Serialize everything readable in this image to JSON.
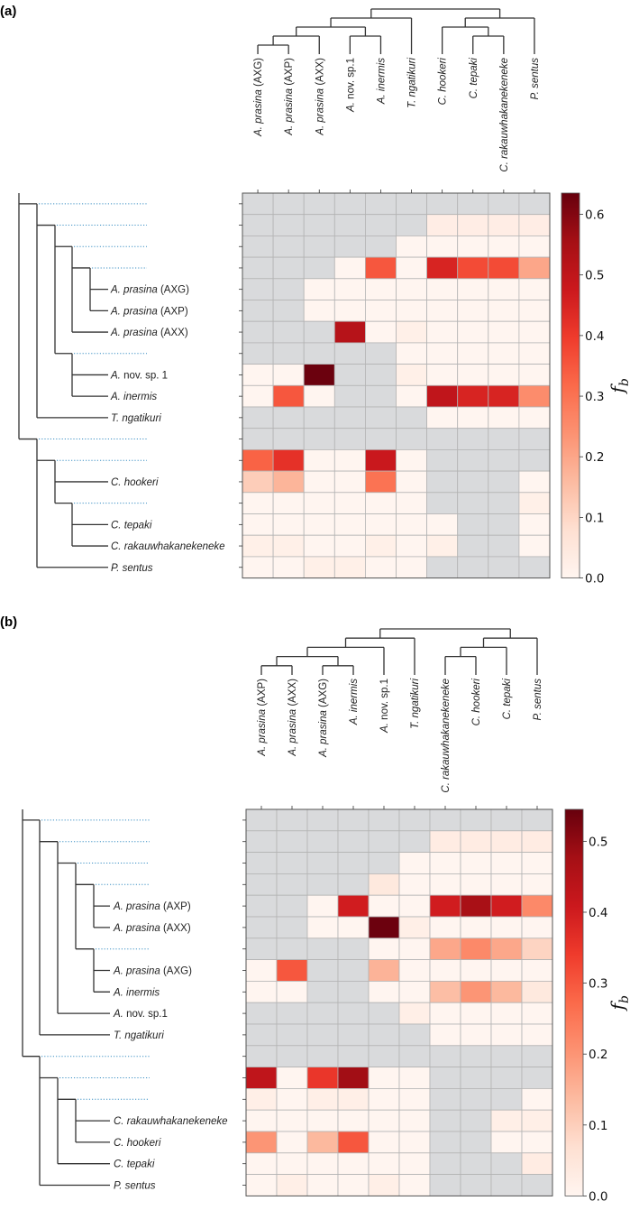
{
  "chart_data": [
    {
      "type": "heatmap",
      "title": "(a)",
      "colormap": "Reds",
      "missing_color": "#d9dadc",
      "x_categories": [
        "A. prasina (AXG)",
        "A. prasina (AXP)",
        "A. prasina (AXX)",
        "A. nov. sp.1",
        "A. inermis",
        "T. ngatikuri",
        "C. hookeri",
        "C. tepaki",
        "C. rakauwhakanekeneke",
        "P. sentus"
      ],
      "y_categories": [
        "",
        "",
        "",
        "",
        "A. prasina (AXG)",
        "A. prasina (AXP)",
        "A. prasina (AXX)",
        "",
        "A. nov. sp. 1",
        "A. inermis",
        "T. ngatikuri",
        "",
        "",
        "C. hookeri",
        "",
        "C. tepaki",
        "C. rakauwhakanekeneke",
        "P. sentus"
      ],
      "values": [
        [
          null,
          null,
          null,
          null,
          null,
          null,
          null,
          null,
          null,
          null
        ],
        [
          null,
          null,
          null,
          null,
          null,
          null,
          0.03,
          0.03,
          0.03,
          0.03
        ],
        [
          null,
          null,
          null,
          null,
          null,
          0,
          0,
          0,
          0,
          0
        ],
        [
          null,
          null,
          null,
          0,
          0.35,
          0,
          0.45,
          0.37,
          0.37,
          0.2
        ],
        [
          null,
          null,
          0,
          0,
          0,
          0,
          0,
          0,
          0,
          0
        ],
        [
          null,
          null,
          0,
          0,
          0,
          0,
          0,
          0,
          0,
          0
        ],
        [
          null,
          null,
          null,
          0.52,
          0,
          0.02,
          0,
          0,
          0,
          0
        ],
        [
          null,
          null,
          null,
          null,
          null,
          0,
          0,
          0,
          0,
          0
        ],
        [
          0,
          0,
          0.63,
          null,
          null,
          0.02,
          0,
          0,
          0,
          0
        ],
        [
          0,
          0.35,
          0,
          null,
          null,
          0,
          0.5,
          0.45,
          0.45,
          0.25
        ],
        [
          null,
          null,
          null,
          null,
          null,
          null,
          0,
          0,
          0,
          0
        ],
        [
          null,
          null,
          null,
          null,
          null,
          null,
          null,
          null,
          null,
          null
        ],
        [
          0.33,
          0.42,
          0,
          0,
          0.48,
          0,
          null,
          null,
          null,
          null
        ],
        [
          0.12,
          0.17,
          0,
          0,
          0.3,
          0,
          null,
          null,
          null,
          0
        ],
        [
          0,
          0,
          0,
          0,
          0,
          0,
          null,
          null,
          null,
          0.02
        ],
        [
          0,
          0,
          0,
          0,
          0,
          0,
          0,
          null,
          null,
          0
        ],
        [
          0.02,
          0.02,
          0,
          0,
          0.02,
          0,
          0.02,
          null,
          null,
          0
        ],
        [
          0,
          0,
          0.02,
          0.02,
          0,
          0,
          null,
          null,
          null,
          null
        ]
      ],
      "zlim": [
        0,
        0.635
      ],
      "colorbar_label": "f_b",
      "colorbar_ticks": [
        "0.0",
        "0.1",
        "0.2",
        "0.3",
        "0.4",
        "0.5",
        "0.6"
      ]
    },
    {
      "type": "heatmap",
      "title": "(b)",
      "colormap": "Reds",
      "missing_color": "#d9dadc",
      "x_categories": [
        "A. prasina (AXP)",
        "A. prasina (AXX)",
        "A. prasina (AXG)",
        "A. inermis",
        "A. nov. sp.1",
        "T. ngatikuri",
        "C. rakauwhakanekeneke",
        "C. hookeri",
        "C. tepaki",
        "P. sentus"
      ],
      "y_categories": [
        "",
        "",
        "",
        "",
        "A. prasina (AXP)",
        "A. prasina (AXX)",
        "",
        "A. prasina (AXG)",
        "A. inermis",
        "A. nov. sp.1",
        "T. ngatikuri",
        "",
        "",
        "",
        "C. rakauwhakanekeneke",
        "C. hookeri",
        "C. tepaki",
        "P. sentus"
      ],
      "values": [
        [
          null,
          null,
          null,
          null,
          null,
          null,
          null,
          null,
          null,
          null
        ],
        [
          null,
          null,
          null,
          null,
          null,
          null,
          0.03,
          0.03,
          0.03,
          0.03
        ],
        [
          null,
          null,
          null,
          null,
          null,
          0,
          0,
          0,
          0,
          0
        ],
        [
          null,
          null,
          null,
          null,
          0.04,
          0,
          0,
          0,
          0,
          0
        ],
        [
          null,
          null,
          0,
          0.4,
          0,
          0,
          0.4,
          0.47,
          0.4,
          0.22
        ],
        [
          null,
          null,
          0,
          0,
          0.54,
          0.02,
          0,
          0,
          0,
          0
        ],
        [
          null,
          null,
          null,
          null,
          0,
          0,
          0.17,
          0.22,
          0.17,
          0.09
        ],
        [
          0,
          0.3,
          null,
          null,
          0.15,
          0,
          0,
          0,
          0,
          0
        ],
        [
          0,
          0,
          null,
          null,
          0,
          0,
          0.13,
          0.2,
          0.14,
          0.04
        ],
        [
          null,
          null,
          null,
          null,
          null,
          0.02,
          0,
          0,
          0,
          0
        ],
        [
          null,
          null,
          null,
          null,
          null,
          null,
          0,
          0,
          0,
          0
        ],
        [
          null,
          null,
          null,
          null,
          null,
          null,
          null,
          null,
          null,
          null
        ],
        [
          0.43,
          0,
          0.35,
          0.48,
          0,
          0,
          null,
          null,
          null,
          null
        ],
        [
          0.02,
          0,
          0.02,
          0.02,
          0,
          0,
          null,
          null,
          null,
          0
        ],
        [
          0,
          0,
          0,
          0,
          0,
          0,
          null,
          null,
          0.02,
          0.02
        ],
        [
          0.2,
          0,
          0.14,
          0.3,
          0,
          0,
          null,
          null,
          0,
          0
        ],
        [
          0,
          0,
          0,
          0,
          0,
          0,
          null,
          null,
          null,
          0.03
        ],
        [
          0,
          0.02,
          0,
          0,
          0.02,
          0,
          null,
          null,
          null,
          null
        ]
      ],
      "zlim": [
        0,
        0.545
      ],
      "colorbar_label": "f_b",
      "colorbar_ticks": [
        "0.0",
        "0.1",
        "0.2",
        "0.3",
        "0.4",
        "0.5"
      ]
    }
  ]
}
